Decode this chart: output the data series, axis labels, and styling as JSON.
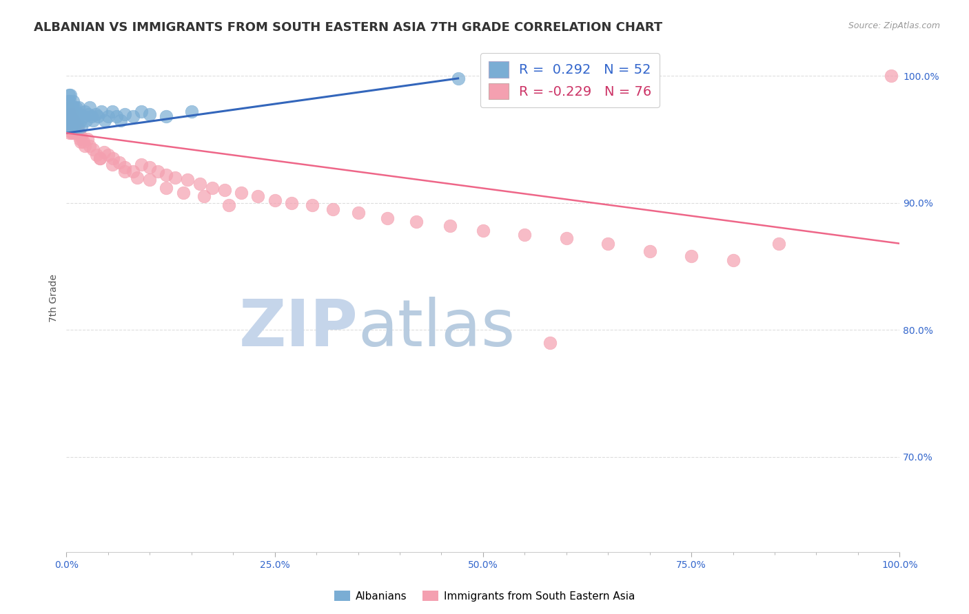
{
  "title": "ALBANIAN VS IMMIGRANTS FROM SOUTH EASTERN ASIA 7TH GRADE CORRELATION CHART",
  "source": "Source: ZipAtlas.com",
  "ylabel": "7th Grade",
  "xmin": 0.0,
  "xmax": 1.0,
  "ymin": 0.625,
  "ymax": 1.025,
  "ytick_labels": [
    "70.0%",
    "80.0%",
    "90.0%",
    "100.0%"
  ],
  "ytick_values": [
    0.7,
    0.8,
    0.9,
    1.0
  ],
  "xtick_labels": [
    "0.0%",
    "",
    "",
    "",
    "",
    "25.0%",
    "",
    "",
    "",
    "",
    "50.0%",
    "",
    "",
    "",
    "",
    "75.0%",
    "",
    "",
    "",
    "",
    "100.0%"
  ],
  "xtick_values": [
    0.0,
    0.05,
    0.1,
    0.15,
    0.2,
    0.25,
    0.3,
    0.35,
    0.4,
    0.45,
    0.5,
    0.55,
    0.6,
    0.65,
    0.7,
    0.75,
    0.8,
    0.85,
    0.9,
    0.95,
    1.0
  ],
  "blue_R": 0.292,
  "blue_N": 52,
  "pink_R": -0.229,
  "pink_N": 76,
  "blue_color": "#7aadd4",
  "pink_color": "#f4a0b0",
  "blue_line_color": "#3366bb",
  "pink_line_color": "#ee6688",
  "watermark_zip": "ZIP",
  "watermark_atlas": "atlas",
  "watermark_color_zip": "#d0dff0",
  "watermark_color_atlas": "#b0c8e8",
  "blue_scatter_x": [
    0.001,
    0.002,
    0.002,
    0.003,
    0.003,
    0.003,
    0.004,
    0.004,
    0.004,
    0.005,
    0.005,
    0.005,
    0.006,
    0.006,
    0.007,
    0.007,
    0.008,
    0.008,
    0.009,
    0.009,
    0.01,
    0.01,
    0.011,
    0.012,
    0.013,
    0.014,
    0.015,
    0.016,
    0.017,
    0.018,
    0.02,
    0.022,
    0.024,
    0.026,
    0.028,
    0.03,
    0.032,
    0.035,
    0.038,
    0.042,
    0.046,
    0.05,
    0.055,
    0.06,
    0.065,
    0.07,
    0.08,
    0.09,
    0.1,
    0.12,
    0.15,
    0.47
  ],
  "blue_scatter_y": [
    0.97,
    0.98,
    0.96,
    0.975,
    0.985,
    0.965,
    0.97,
    0.96,
    0.98,
    0.975,
    0.965,
    0.985,
    0.97,
    0.96,
    0.975,
    0.965,
    0.97,
    0.98,
    0.965,
    0.975,
    0.97,
    0.96,
    0.975,
    0.97,
    0.965,
    0.96,
    0.975,
    0.97,
    0.965,
    0.96,
    0.968,
    0.972,
    0.965,
    0.97,
    0.975,
    0.968,
    0.965,
    0.97,
    0.968,
    0.972,
    0.965,
    0.968,
    0.972,
    0.968,
    0.965,
    0.97,
    0.968,
    0.972,
    0.97,
    0.968,
    0.972,
    0.998
  ],
  "pink_scatter_x": [
    0.001,
    0.002,
    0.003,
    0.003,
    0.004,
    0.004,
    0.005,
    0.005,
    0.006,
    0.006,
    0.007,
    0.007,
    0.008,
    0.008,
    0.009,
    0.009,
    0.01,
    0.011,
    0.012,
    0.013,
    0.014,
    0.015,
    0.016,
    0.017,
    0.018,
    0.02,
    0.022,
    0.025,
    0.028,
    0.032,
    0.036,
    0.04,
    0.045,
    0.05,
    0.056,
    0.063,
    0.07,
    0.08,
    0.09,
    0.1,
    0.11,
    0.12,
    0.13,
    0.145,
    0.16,
    0.175,
    0.19,
    0.21,
    0.23,
    0.25,
    0.27,
    0.295,
    0.32,
    0.35,
    0.385,
    0.42,
    0.46,
    0.5,
    0.55,
    0.6,
    0.65,
    0.7,
    0.75,
    0.8,
    0.855,
    0.04,
    0.055,
    0.07,
    0.085,
    0.1,
    0.12,
    0.14,
    0.165,
    0.195,
    0.58,
    0.99
  ],
  "pink_scatter_y": [
    0.96,
    0.975,
    0.97,
    0.96,
    0.965,
    0.955,
    0.97,
    0.96,
    0.965,
    0.955,
    0.97,
    0.96,
    0.965,
    0.955,
    0.96,
    0.965,
    0.96,
    0.955,
    0.96,
    0.955,
    0.96,
    0.955,
    0.95,
    0.948,
    0.952,
    0.948,
    0.945,
    0.95,
    0.945,
    0.942,
    0.938,
    0.935,
    0.94,
    0.938,
    0.935,
    0.932,
    0.928,
    0.925,
    0.93,
    0.928,
    0.925,
    0.922,
    0.92,
    0.918,
    0.915,
    0.912,
    0.91,
    0.908,
    0.905,
    0.902,
    0.9,
    0.898,
    0.895,
    0.892,
    0.888,
    0.885,
    0.882,
    0.878,
    0.875,
    0.872,
    0.868,
    0.862,
    0.858,
    0.855,
    0.868,
    0.935,
    0.93,
    0.925,
    0.92,
    0.918,
    0.912,
    0.908,
    0.905,
    0.898,
    0.79,
    1.0
  ],
  "blue_line_x": [
    0.0,
    0.47
  ],
  "blue_line_y": [
    0.955,
    0.998
  ],
  "pink_line_x": [
    0.0,
    1.0
  ],
  "pink_line_y": [
    0.955,
    0.868
  ],
  "background_color": "#ffffff",
  "grid_color": "#dddddd",
  "title_fontsize": 13,
  "axis_label_fontsize": 10,
  "tick_fontsize": 10,
  "legend_fontsize": 14
}
